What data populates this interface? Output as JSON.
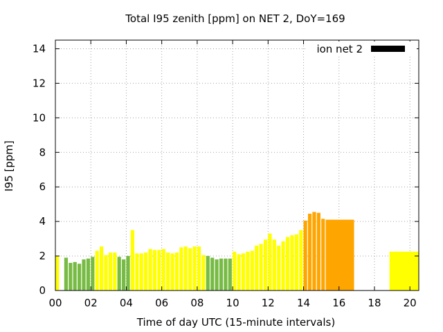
{
  "chart_data": {
    "type": "bar",
    "title": "Total I95 zenith [ppm] on NET 2, DoY=169",
    "xlabel": "Time of day UTC (15-minute intervals)",
    "ylabel": "I95 [ppm]",
    "xlim": [
      0,
      20.5
    ],
    "ylim": [
      0,
      14.5
    ],
    "xticks": [
      0,
      2,
      4,
      6,
      8,
      10,
      12,
      14,
      16,
      18,
      20
    ],
    "xtick_labels": [
      "00",
      "02",
      "04",
      "06",
      "08",
      "10",
      "12",
      "14",
      "16",
      "18",
      "20"
    ],
    "yticks": [
      0,
      2,
      4,
      6,
      8,
      10,
      12,
      14
    ],
    "ytick_labels": [
      "0",
      "2",
      "4",
      "6",
      "8",
      "10",
      "12",
      "14"
    ],
    "grid": true,
    "legend": {
      "label": "ion net 2",
      "position": "top-right",
      "color": "#000000"
    },
    "colors": {
      "yellow": "#ffff00",
      "green": "#77bb44",
      "orange": "#ffa500"
    },
    "bars": [
      {
        "x": 0.0,
        "w": 0.25,
        "value": 2.0,
        "color": "yellow"
      },
      {
        "x": 0.5,
        "w": 0.25,
        "value": 1.9,
        "color": "green"
      },
      {
        "x": 0.75,
        "w": 0.25,
        "value": 1.6,
        "color": "green"
      },
      {
        "x": 1.0,
        "w": 0.25,
        "value": 1.65,
        "color": "green"
      },
      {
        "x": 1.25,
        "w": 0.25,
        "value": 1.55,
        "color": "green"
      },
      {
        "x": 1.5,
        "w": 0.25,
        "value": 1.8,
        "color": "green"
      },
      {
        "x": 1.75,
        "w": 0.25,
        "value": 1.85,
        "color": "green"
      },
      {
        "x": 2.0,
        "w": 0.25,
        "value": 1.95,
        "color": "green"
      },
      {
        "x": 2.25,
        "w": 0.25,
        "value": 2.3,
        "color": "yellow"
      },
      {
        "x": 2.5,
        "w": 0.25,
        "value": 2.55,
        "color": "yellow"
      },
      {
        "x": 2.75,
        "w": 0.25,
        "value": 2.05,
        "color": "yellow"
      },
      {
        "x": 3.0,
        "w": 0.25,
        "value": 2.2,
        "color": "yellow"
      },
      {
        "x": 3.25,
        "w": 0.25,
        "value": 2.2,
        "color": "yellow"
      },
      {
        "x": 3.5,
        "w": 0.25,
        "value": 1.95,
        "color": "green"
      },
      {
        "x": 3.75,
        "w": 0.25,
        "value": 1.8,
        "color": "green"
      },
      {
        "x": 4.0,
        "w": 0.25,
        "value": 2.0,
        "color": "green"
      },
      {
        "x": 4.25,
        "w": 0.25,
        "value": 3.5,
        "color": "yellow"
      },
      {
        "x": 4.5,
        "w": 0.25,
        "value": 2.15,
        "color": "yellow"
      },
      {
        "x": 4.75,
        "w": 0.25,
        "value": 2.15,
        "color": "yellow"
      },
      {
        "x": 5.0,
        "w": 0.25,
        "value": 2.2,
        "color": "yellow"
      },
      {
        "x": 5.25,
        "w": 0.25,
        "value": 2.4,
        "color": "yellow"
      },
      {
        "x": 5.5,
        "w": 0.25,
        "value": 2.35,
        "color": "yellow"
      },
      {
        "x": 5.75,
        "w": 0.25,
        "value": 2.35,
        "color": "yellow"
      },
      {
        "x": 6.0,
        "w": 0.25,
        "value": 2.4,
        "color": "yellow"
      },
      {
        "x": 6.25,
        "w": 0.25,
        "value": 2.2,
        "color": "yellow"
      },
      {
        "x": 6.5,
        "w": 0.25,
        "value": 2.15,
        "color": "yellow"
      },
      {
        "x": 6.75,
        "w": 0.25,
        "value": 2.2,
        "color": "yellow"
      },
      {
        "x": 7.0,
        "w": 0.25,
        "value": 2.5,
        "color": "yellow"
      },
      {
        "x": 7.25,
        "w": 0.25,
        "value": 2.55,
        "color": "yellow"
      },
      {
        "x": 7.5,
        "w": 0.25,
        "value": 2.45,
        "color": "yellow"
      },
      {
        "x": 7.75,
        "w": 0.25,
        "value": 2.55,
        "color": "yellow"
      },
      {
        "x": 8.0,
        "w": 0.25,
        "value": 2.55,
        "color": "yellow"
      },
      {
        "x": 8.25,
        "w": 0.25,
        "value": 2.05,
        "color": "yellow"
      },
      {
        "x": 8.5,
        "w": 0.25,
        "value": 2.0,
        "color": "green"
      },
      {
        "x": 8.75,
        "w": 0.25,
        "value": 1.9,
        "color": "green"
      },
      {
        "x": 9.0,
        "w": 0.25,
        "value": 1.8,
        "color": "green"
      },
      {
        "x": 9.25,
        "w": 0.25,
        "value": 1.85,
        "color": "green"
      },
      {
        "x": 9.5,
        "w": 0.25,
        "value": 1.85,
        "color": "green"
      },
      {
        "x": 9.75,
        "w": 0.25,
        "value": 1.85,
        "color": "green"
      },
      {
        "x": 10.0,
        "w": 0.25,
        "value": 2.25,
        "color": "yellow"
      },
      {
        "x": 10.25,
        "w": 0.25,
        "value": 2.1,
        "color": "yellow"
      },
      {
        "x": 10.5,
        "w": 0.25,
        "value": 2.15,
        "color": "yellow"
      },
      {
        "x": 10.75,
        "w": 0.25,
        "value": 2.25,
        "color": "yellow"
      },
      {
        "x": 11.0,
        "w": 0.25,
        "value": 2.3,
        "color": "yellow"
      },
      {
        "x": 11.25,
        "w": 0.25,
        "value": 2.6,
        "color": "yellow"
      },
      {
        "x": 11.5,
        "w": 0.25,
        "value": 2.7,
        "color": "yellow"
      },
      {
        "x": 11.75,
        "w": 0.25,
        "value": 2.95,
        "color": "yellow"
      },
      {
        "x": 12.0,
        "w": 0.25,
        "value": 3.3,
        "color": "yellow"
      },
      {
        "x": 12.25,
        "w": 0.25,
        "value": 2.95,
        "color": "yellow"
      },
      {
        "x": 12.5,
        "w": 0.25,
        "value": 2.6,
        "color": "yellow"
      },
      {
        "x": 12.75,
        "w": 0.25,
        "value": 2.85,
        "color": "yellow"
      },
      {
        "x": 13.0,
        "w": 0.25,
        "value": 3.1,
        "color": "yellow"
      },
      {
        "x": 13.25,
        "w": 0.25,
        "value": 3.2,
        "color": "yellow"
      },
      {
        "x": 13.5,
        "w": 0.25,
        "value": 3.25,
        "color": "yellow"
      },
      {
        "x": 13.75,
        "w": 0.25,
        "value": 3.5,
        "color": "yellow"
      },
      {
        "x": 14.0,
        "w": 0.25,
        "value": 4.05,
        "color": "orange"
      },
      {
        "x": 14.25,
        "w": 0.25,
        "value": 4.45,
        "color": "orange"
      },
      {
        "x": 14.5,
        "w": 0.25,
        "value": 4.55,
        "color": "orange"
      },
      {
        "x": 14.75,
        "w": 0.25,
        "value": 4.5,
        "color": "orange"
      },
      {
        "x": 15.0,
        "w": 0.25,
        "value": 4.15,
        "color": "orange"
      },
      {
        "x": 15.25,
        "w": 1.6,
        "value": 4.1,
        "color": "orange"
      },
      {
        "x": 18.85,
        "w": 1.65,
        "value": 2.25,
        "color": "yellow"
      }
    ]
  }
}
